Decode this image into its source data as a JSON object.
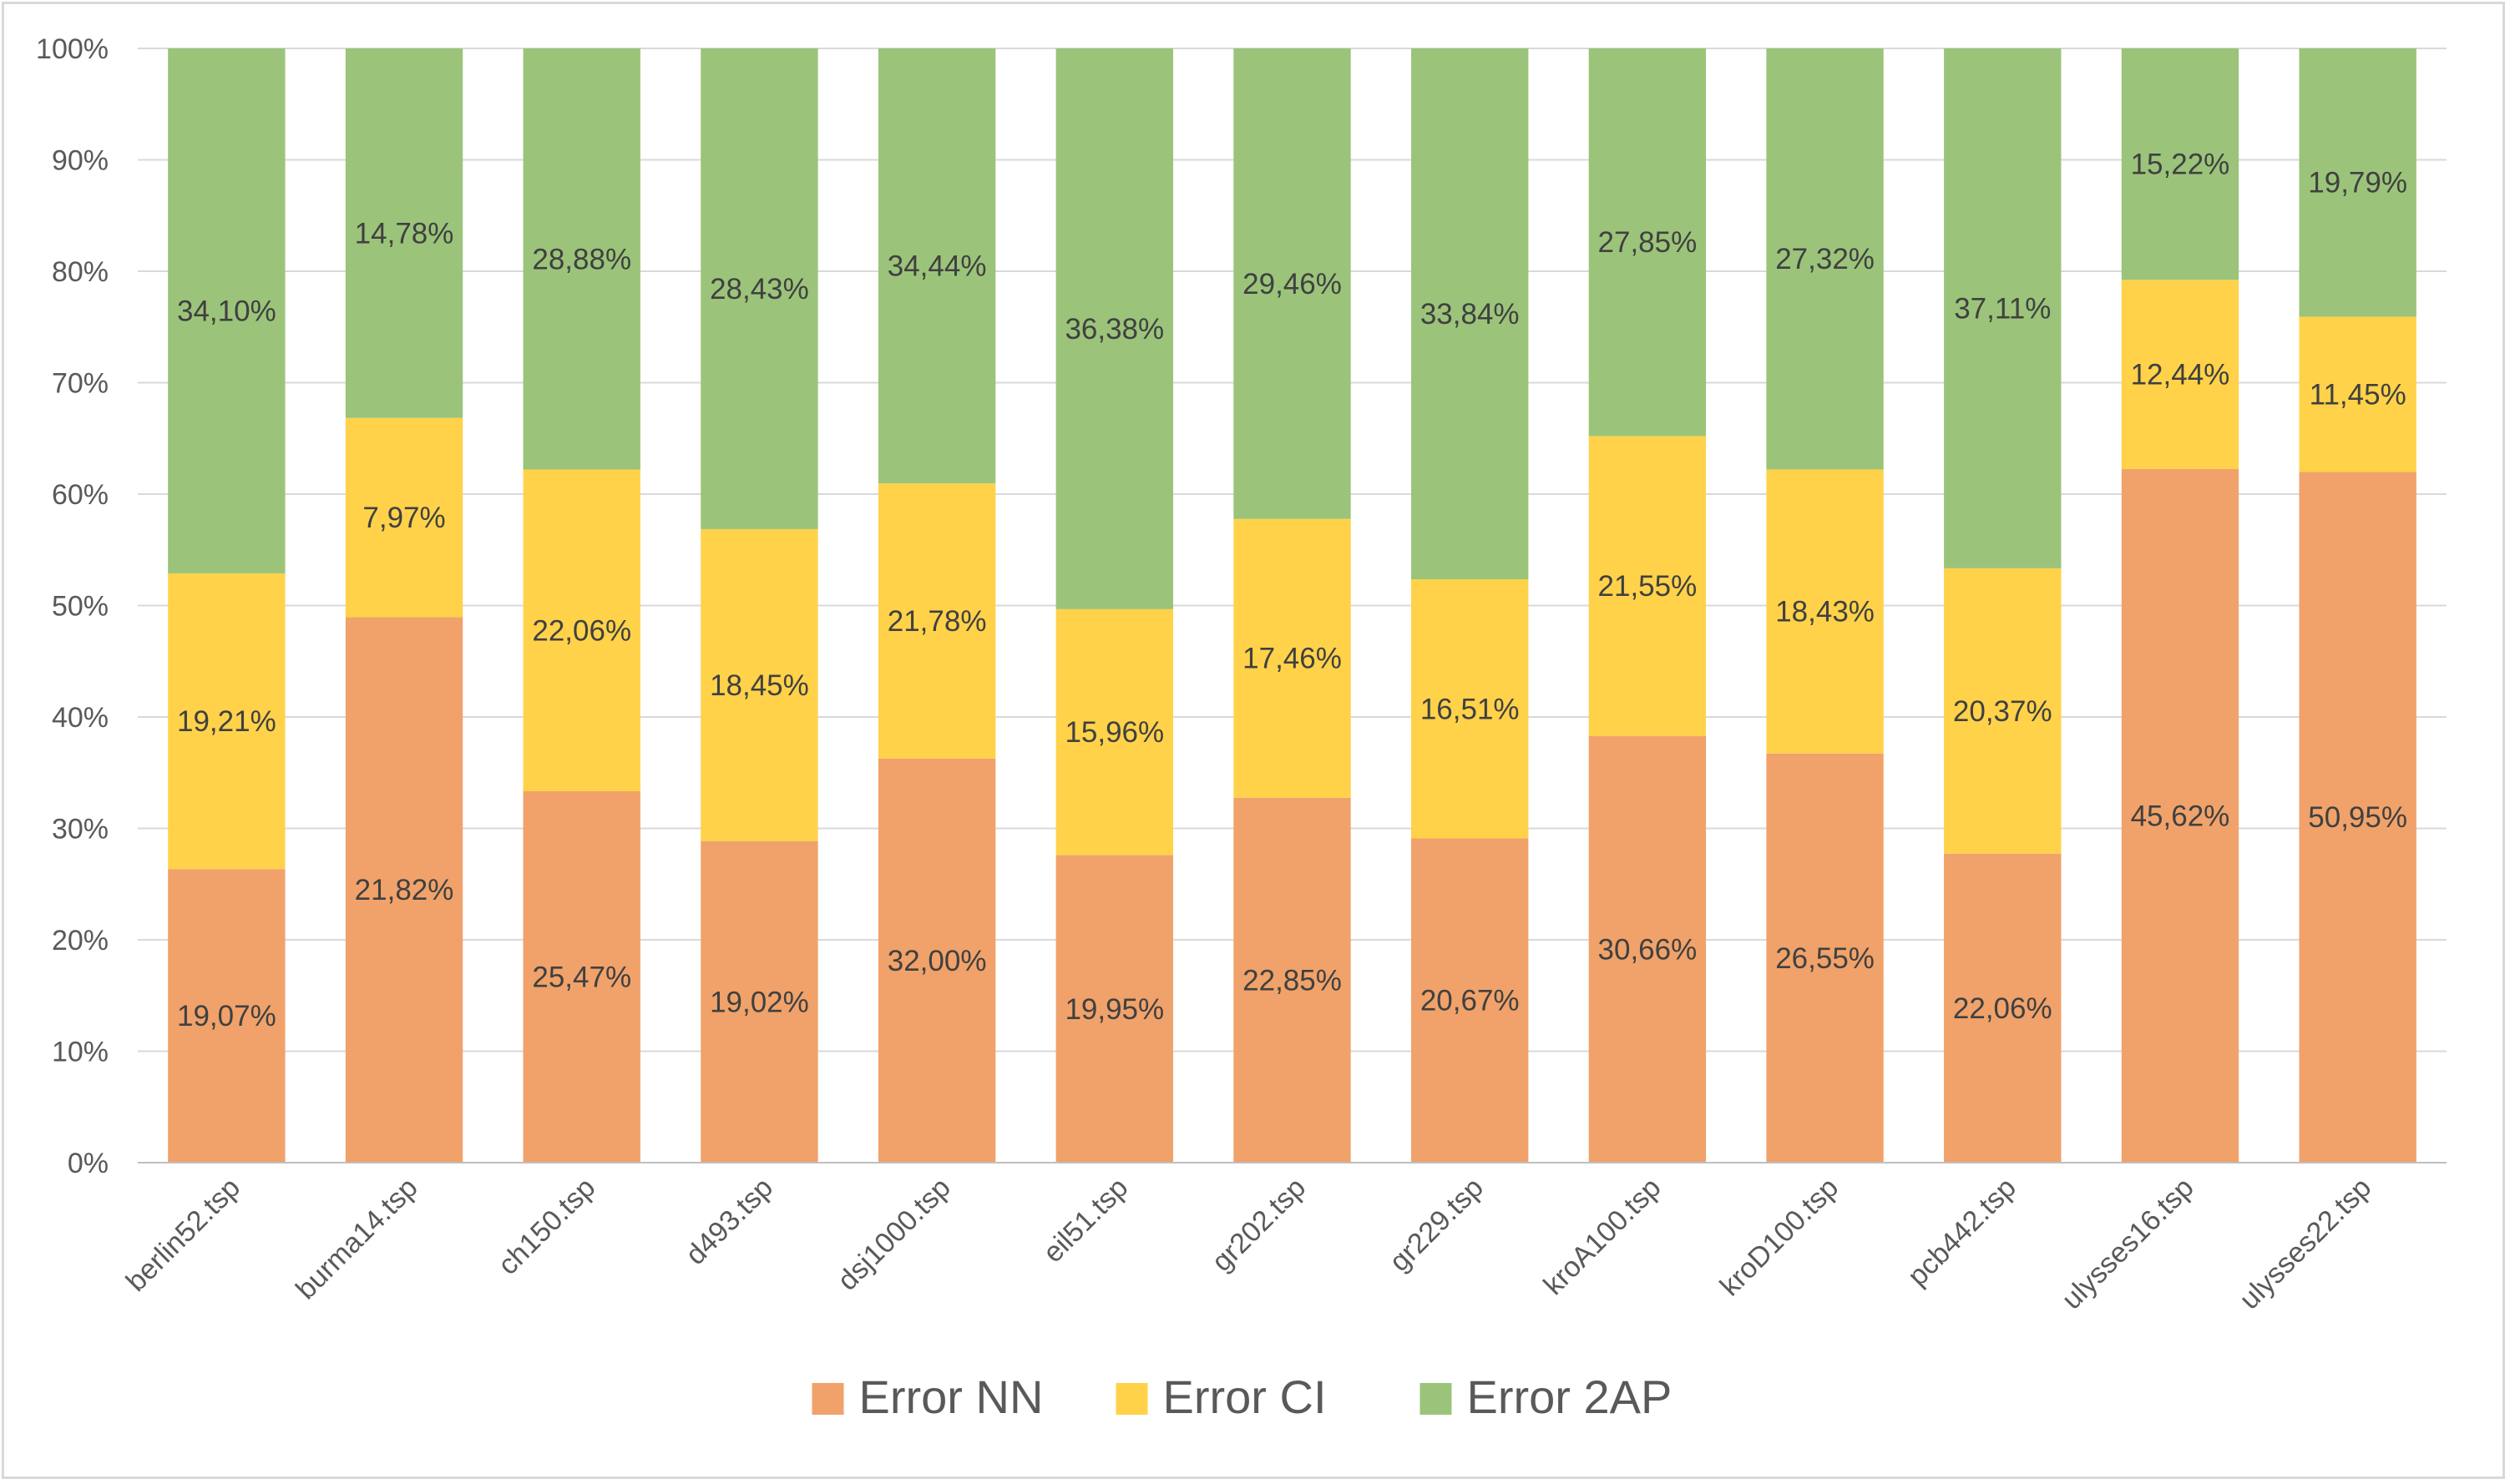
{
  "chart_data": {
    "type": "bar",
    "stacked": true,
    "percent_stacked": true,
    "title": "",
    "xlabel": "",
    "ylabel": "",
    "ylim": [
      0,
      100
    ],
    "y_ticks": [
      "0%",
      "10%",
      "20%",
      "30%",
      "40%",
      "50%",
      "60%",
      "70%",
      "80%",
      "90%",
      "100%"
    ],
    "grid": true,
    "legend_position": "bottom",
    "categories": [
      "berlin52.tsp",
      "burma14.tsp",
      "ch150.tsp",
      "d493.tsp",
      "dsj1000.tsp",
      "eil51.tsp",
      "gr202.tsp",
      "gr229.tsp",
      "kroA100.tsp",
      "kroD100.tsp",
      "pcb442.tsp",
      "ulysses16.tsp",
      "ulysses22.tsp"
    ],
    "series": [
      {
        "name": "Error NN",
        "color": "#f0a26a",
        "values": [
          19.07,
          21.82,
          25.47,
          19.02,
          32.0,
          19.95,
          22.85,
          20.67,
          30.66,
          26.55,
          22.06,
          45.62,
          50.95
        ],
        "labels": [
          "19,07%",
          "21,82%",
          "25,47%",
          "19,02%",
          "32,00%",
          "19,95%",
          "22,85%",
          "20,67%",
          "30,66%",
          "26,55%",
          "22,06%",
          "45,62%",
          "50,95%"
        ]
      },
      {
        "name": "Error CI",
        "color": "#ffd24a",
        "values": [
          19.21,
          7.97,
          22.06,
          18.45,
          21.78,
          15.96,
          17.46,
          16.51,
          21.55,
          18.43,
          20.37,
          12.44,
          11.45
        ],
        "labels": [
          "19,21%",
          "7,97%",
          "22,06%",
          "18,45%",
          "21,78%",
          "15,96%",
          "17,46%",
          "16,51%",
          "21,55%",
          "18,43%",
          "20,37%",
          "12,44%",
          "11,45%"
        ]
      },
      {
        "name": "Error 2AP",
        "color": "#9bc47a",
        "values": [
          34.1,
          14.78,
          28.88,
          28.43,
          34.44,
          36.38,
          29.46,
          33.84,
          27.85,
          27.32,
          37.11,
          15.22,
          19.79
        ],
        "labels": [
          "34,10%",
          "14,78%",
          "28,88%",
          "28,43%",
          "34,44%",
          "36,38%",
          "29,46%",
          "33,84%",
          "27,85%",
          "27,32%",
          "37,11%",
          "15,22%",
          "19,79%"
        ]
      }
    ]
  }
}
